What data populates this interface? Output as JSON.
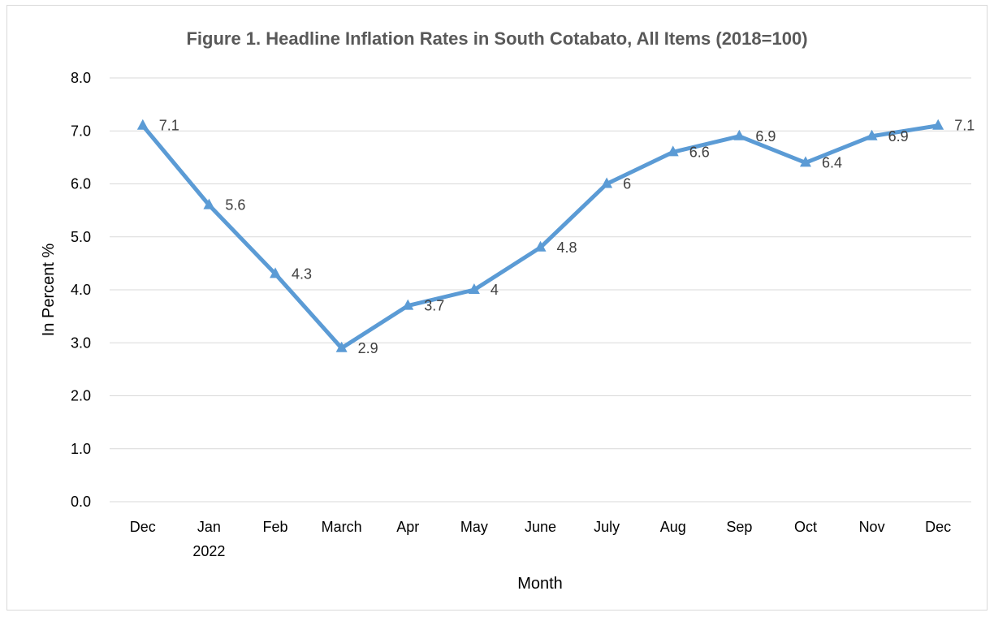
{
  "chart_data": {
    "type": "line",
    "title": "Figure 1. Headline Inflation Rates in South Cotabato, All Items (2018=100)",
    "xlabel": "Month",
    "ylabel": "In Percent %",
    "categories": [
      "Dec",
      "Jan",
      "Feb",
      "March",
      "Apr",
      "May",
      "June",
      "July",
      "Aug",
      "Sep",
      "Oct",
      "Nov",
      "Dec"
    ],
    "category_sublabels": [
      "",
      "2022",
      "",
      "",
      "",
      "",
      "",
      "",
      "",
      "",
      "",
      "",
      ""
    ],
    "series": [
      {
        "values": [
          7.1,
          5.6,
          4.3,
          2.9,
          3.7,
          4.0,
          4.8,
          6.0,
          6.6,
          6.9,
          6.4,
          6.9,
          7.1
        ],
        "data_labels": [
          "7.1",
          "5.6",
          "4.3",
          "2.9",
          "3.7",
          "4",
          "4.8",
          "6",
          "6.6",
          "6.9",
          "6.4",
          "6.9",
          "7.1"
        ],
        "color": "#5b9bd5",
        "marker": "triangle"
      }
    ],
    "ylim": [
      0,
      8
    ],
    "yticks": [
      "0.0",
      "1.0",
      "2.0",
      "3.0",
      "4.0",
      "5.0",
      "6.0",
      "7.0",
      "8.0"
    ],
    "grid": true,
    "legend": "none"
  }
}
